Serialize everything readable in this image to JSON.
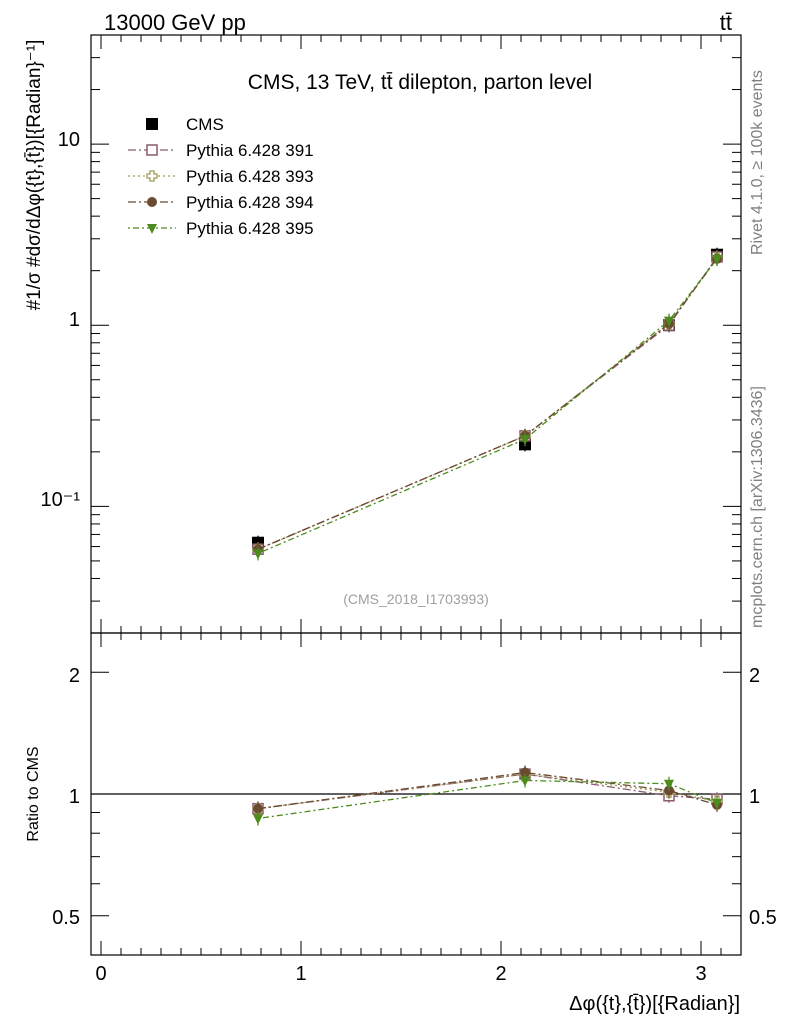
{
  "header": {
    "left": "13000 GeV pp",
    "right": "tt̄"
  },
  "side_labels": {
    "rivet": "Rivet 4.1.0, ≥ 100k events",
    "mcplots": "mcplots.cern.ch [arXiv:1306.3436]"
  },
  "main_panel": {
    "title": "CMS, 13 TeV, tt̄ dilepton, parton level",
    "analysis_id": "(CMS_2018_I1703993)",
    "ylabel": "#1/σ #dσ/dΔφ({t},{t̄})[{Radian}⁻¹]",
    "ytick_labels": [
      "10⁻¹",
      "1",
      "10"
    ]
  },
  "ratio_panel": {
    "ylabel": "Ratio to CMS",
    "ytick_labels": [
      "0.5",
      "1",
      "2"
    ],
    "ytick_labels_right": [
      "0.5",
      "1",
      "2"
    ]
  },
  "xaxis": {
    "label": "Δφ({t},{t̄})[{Radian}]",
    "tick_labels": [
      "0",
      "1",
      "2",
      "3"
    ]
  },
  "legend": {
    "entries": [
      "CMS",
      "Pythia 6.428 391",
      "Pythia 6.428 393",
      "Pythia 6.428 394",
      "Pythia 6.428 395"
    ]
  },
  "chart_data": [
    {
      "type": "scatter",
      "panel": "main",
      "xlim": [
        -0.05,
        3.2
      ],
      "ylim": [
        0.02,
        40
      ],
      "yscale": "log",
      "x": [
        0.785,
        2.12,
        2.84,
        3.08
      ],
      "series": [
        {
          "name": "CMS",
          "style": "data",
          "color": "#000000",
          "marker": "filled-square",
          "values": [
            0.063,
            0.22,
            1.0,
            2.45
          ]
        },
        {
          "name": "Pythia 6.428 391",
          "color": "#8a5a6e",
          "marker": "open-square",
          "dash": "8,3,2,3",
          "values": [
            0.058,
            0.245,
            1.0,
            2.38
          ]
        },
        {
          "name": "Pythia 6.428 393",
          "color": "#9e9a5c",
          "marker": "open-cross",
          "dash": "2,3",
          "values": [
            0.058,
            0.245,
            1.02,
            2.36
          ]
        },
        {
          "name": "Pythia 6.428 394",
          "color": "#6b4a32",
          "marker": "filled-circle",
          "dash": "8,3,2,3",
          "values": [
            0.058,
            0.245,
            1.02,
            2.33
          ]
        },
        {
          "name": "Pythia 6.428 395",
          "color": "#4c8c1c",
          "marker": "filled-triangle-down",
          "dash": "2,3,6,3",
          "values": [
            0.055,
            0.235,
            1.06,
            2.32
          ]
        }
      ]
    },
    {
      "type": "line",
      "panel": "ratio",
      "xlim": [
        -0.05,
        3.2
      ],
      "ylim": [
        0.4,
        2.5
      ],
      "yscale": "log",
      "reference_line": 1,
      "x": [
        0.785,
        2.12,
        2.84,
        3.08
      ],
      "series": [
        {
          "name": "Pythia 6.428 391",
          "color": "#8a5a6e",
          "marker": "open-square",
          "dash": "8,3,2,3",
          "values": [
            0.92,
            1.12,
            0.99,
            0.97
          ]
        },
        {
          "name": "Pythia 6.428 393",
          "color": "#9e9a5c",
          "marker": "open-cross",
          "dash": "2,3",
          "values": [
            0.92,
            1.12,
            1.01,
            0.96
          ]
        },
        {
          "name": "Pythia 6.428 394",
          "color": "#6b4a32",
          "marker": "filled-circle",
          "dash": "8,3,2,3",
          "values": [
            0.92,
            1.13,
            1.02,
            0.94
          ]
        },
        {
          "name": "Pythia 6.428 395",
          "color": "#4c8c1c",
          "marker": "filled-triangle-down",
          "dash": "2,3,6,3",
          "values": [
            0.87,
            1.08,
            1.06,
            0.95
          ]
        }
      ]
    }
  ]
}
